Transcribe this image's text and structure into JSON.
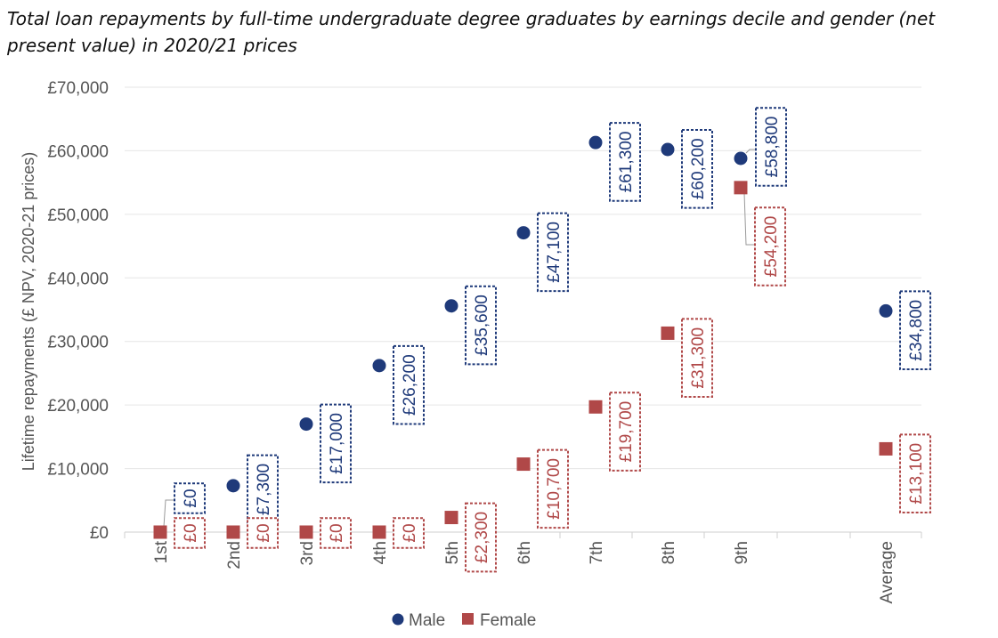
{
  "title": "Total loan repayments by full-time undergraduate degree graduates by earnings decile and gender (net present value) in 2020/21 prices",
  "chart_data": {
    "type": "scatter",
    "ylabel": "Lifetime repayments (£ NPV, 2020-21 prices)",
    "ylim": [
      0,
      70000
    ],
    "yticks": [
      0,
      10000,
      20000,
      30000,
      40000,
      50000,
      60000,
      70000
    ],
    "ytick_labels": [
      "£0",
      "£10,000",
      "£20,000",
      "£30,000",
      "£40,000",
      "£50,000",
      "£60,000",
      "£70,000"
    ],
    "categories": [
      "1st",
      "2nd",
      "3rd",
      "4th",
      "5th",
      "6th",
      "7th",
      "8th",
      "9th",
      "Average"
    ],
    "grid": true,
    "legend_position": "bottom",
    "series": [
      {
        "name": "Male",
        "marker": "circle",
        "color": "#1f3a7a",
        "values": [
          0,
          7300,
          17000,
          26200,
          35600,
          47100,
          61300,
          60200,
          58800,
          34800
        ],
        "labels": [
          "£0",
          "£7,300",
          "£17,000",
          "£26,200",
          "£35,600",
          "£47,100",
          "£61,300",
          "£60,200",
          "£58,800",
          "£34,800"
        ]
      },
      {
        "name": "Female",
        "marker": "square",
        "color": "#b04848",
        "values": [
          0,
          0,
          0,
          0,
          2300,
          10700,
          19700,
          31300,
          54200,
          13100
        ],
        "labels": [
          "£0",
          "£0",
          "£0",
          "£0",
          "£2,300",
          "£10,700",
          "£19,700",
          "£31,300",
          "£54,200",
          "£13,100"
        ]
      }
    ]
  }
}
